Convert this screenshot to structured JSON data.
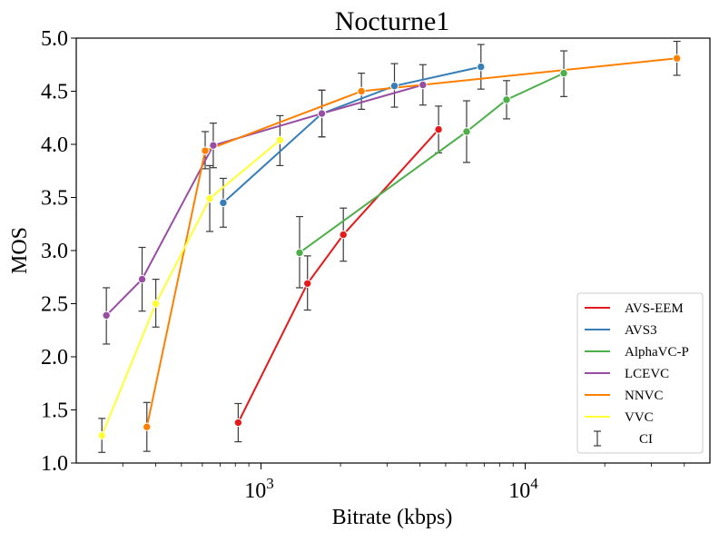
{
  "chart_data": {
    "type": "line",
    "title": "Nocturne1",
    "xlabel": "Bitrate (kbps)",
    "ylabel": "MOS",
    "xscale": "log",
    "xlim": [
      200,
      50000
    ],
    "ylim": [
      1.0,
      5.0
    ],
    "ytick_labels": [
      "1.0",
      "1.5",
      "2.0",
      "2.5",
      "3.0",
      "3.5",
      "4.0",
      "4.5",
      "5.0"
    ],
    "xtick_labels": [
      {
        "base": "10",
        "exp": "3"
      },
      {
        "base": "10",
        "exp": "4"
      }
    ],
    "legend_position": "lower-right",
    "ci_label": "CI",
    "series": [
      {
        "name": "AVS-EEM",
        "color": "#e41a1c",
        "points": [
          {
            "x": 820,
            "y": 1.38,
            "ci": [
              1.2,
              1.56
            ]
          },
          {
            "x": 1500,
            "y": 2.69,
            "ci": [
              2.44,
              2.95
            ]
          },
          {
            "x": 2050,
            "y": 3.15,
            "ci": [
              2.9,
              3.4
            ]
          },
          {
            "x": 4700,
            "y": 4.14,
            "ci": [
              3.92,
              4.36
            ]
          }
        ]
      },
      {
        "name": "AVS3",
        "color": "#377eb8",
        "points": [
          {
            "x": 720,
            "y": 3.45,
            "ci": [
              3.22,
              3.68
            ]
          },
          {
            "x": 1700,
            "y": 4.29,
            "ci": [
              4.07,
              4.51
            ]
          },
          {
            "x": 3200,
            "y": 4.55,
            "ci": [
              4.35,
              4.76
            ]
          },
          {
            "x": 6800,
            "y": 4.73,
            "ci": [
              4.52,
              4.94
            ]
          }
        ]
      },
      {
        "name": "AlphaVC-P",
        "color": "#4daf4a",
        "points": [
          {
            "x": 1400,
            "y": 2.98,
            "ci": [
              2.65,
              3.32
            ]
          },
          {
            "x": 6000,
            "y": 4.12,
            "ci": [
              3.83,
              4.41
            ]
          },
          {
            "x": 8500,
            "y": 4.42,
            "ci": [
              4.24,
              4.6
            ]
          },
          {
            "x": 14000,
            "y": 4.67,
            "ci": [
              4.45,
              4.88
            ]
          }
        ]
      },
      {
        "name": "LCEVC",
        "color": "#984ea3",
        "points": [
          {
            "x": 260,
            "y": 2.39,
            "ci": [
              2.12,
              2.65
            ]
          },
          {
            "x": 355,
            "y": 2.73,
            "ci": [
              2.43,
              3.03
            ]
          },
          {
            "x": 660,
            "y": 3.99,
            "ci": [
              3.78,
              4.2
            ]
          },
          {
            "x": 1700,
            "y": 4.29,
            "ci": [
              4.07,
              4.51
            ]
          },
          {
            "x": 4100,
            "y": 4.56,
            "ci": [
              4.37,
              4.75
            ]
          }
        ]
      },
      {
        "name": "NNVC",
        "color": "#ff7f00",
        "points": [
          {
            "x": 370,
            "y": 1.34,
            "ci": [
              1.11,
              1.57
            ]
          },
          {
            "x": 615,
            "y": 3.94,
            "ci": [
              3.77,
              4.12
            ]
          },
          {
            "x": 2400,
            "y": 4.5,
            "ci": [
              4.33,
              4.67
            ]
          },
          {
            "x": 37500,
            "y": 4.81,
            "ci": [
              4.65,
              4.97
            ]
          }
        ]
      },
      {
        "name": "VVC",
        "color": "#ffff33",
        "points": [
          {
            "x": 250,
            "y": 1.26,
            "ci": [
              1.1,
              1.42
            ]
          },
          {
            "x": 400,
            "y": 2.5,
            "ci": [
              2.28,
              2.73
            ]
          },
          {
            "x": 640,
            "y": 3.49,
            "ci": [
              3.18,
              3.8
            ]
          },
          {
            "x": 1180,
            "y": 4.04,
            "ci": [
              3.8,
              4.27
            ]
          }
        ]
      }
    ]
  }
}
